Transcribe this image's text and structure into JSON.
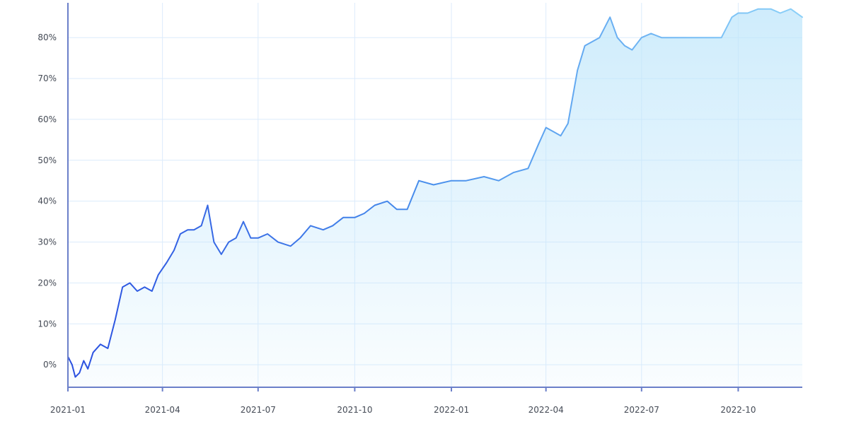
{
  "chart_data": {
    "type": "area",
    "title": "",
    "xlabel": "",
    "ylabel": "",
    "x_ticks": [
      "2021-01",
      "2021-04",
      "2021-07",
      "2021-10",
      "2022-01",
      "2022-04",
      "2022-07",
      "2022-10"
    ],
    "y_ticks": [
      "0%",
      "10%",
      "20%",
      "30%",
      "40%",
      "50%",
      "60%",
      "70%",
      "80%"
    ],
    "xlim": [
      "2021-01-01",
      "2022-12-01"
    ],
    "ylim": [
      -5.5,
      88.5
    ],
    "grid": true,
    "legend": "none",
    "colors": {
      "line_start": "#2a4fe0",
      "line_mid": "#4a90ec",
      "line_end": "#8bd0f8",
      "fill": "#bfe6fb",
      "axis": "#6b7fc9",
      "grid": "#dcebfb"
    },
    "series": [
      {
        "x": [
          "2021-01-01",
          "2021-01-05",
          "2021-01-08",
          "2021-01-12",
          "2021-01-16",
          "2021-01-20",
          "2021-01-25",
          "2021-02-01",
          "2021-02-08",
          "2021-02-15",
          "2021-02-22",
          "2021-03-01",
          "2021-03-08",
          "2021-03-15",
          "2021-03-22",
          "2021-03-28",
          "2021-04-05",
          "2021-04-12",
          "2021-04-18",
          "2021-04-25",
          "2021-05-01",
          "2021-05-08",
          "2021-05-14",
          "2021-05-20",
          "2021-05-27",
          "2021-06-03",
          "2021-06-10",
          "2021-06-17",
          "2021-06-24",
          "2021-07-01",
          "2021-07-10",
          "2021-07-20",
          "2021-08-01",
          "2021-08-10",
          "2021-08-20",
          "2021-09-01",
          "2021-09-10",
          "2021-09-20",
          "2021-10-01",
          "2021-10-10",
          "2021-10-20",
          "2021-11-01",
          "2021-11-10",
          "2021-11-20",
          "2021-12-01",
          "2021-12-15",
          "2022-01-01",
          "2022-01-15",
          "2022-02-01",
          "2022-02-15",
          "2022-03-01",
          "2022-03-15",
          "2022-03-25",
          "2022-04-01",
          "2022-04-08",
          "2022-04-15",
          "2022-04-22",
          "2022-05-01",
          "2022-05-08",
          "2022-05-15",
          "2022-05-22",
          "2022-06-01",
          "2022-06-08",
          "2022-06-15",
          "2022-06-22",
          "2022-07-01",
          "2022-07-10",
          "2022-07-20",
          "2022-08-01",
          "2022-08-15",
          "2022-09-01",
          "2022-09-15",
          "2022-09-25",
          "2022-10-01",
          "2022-10-10",
          "2022-10-20",
          "2022-11-01",
          "2022-11-10",
          "2022-11-20",
          "2022-12-01"
        ],
        "values": [
          2,
          0,
          -3,
          -2,
          1,
          -1,
          3,
          5,
          4,
          11,
          19,
          20,
          18,
          19,
          18,
          22,
          25,
          28,
          32,
          33,
          33,
          34,
          39,
          30,
          27,
          30,
          31,
          35,
          31,
          31,
          32,
          30,
          29,
          31,
          34,
          33,
          34,
          36,
          36,
          37,
          39,
          40,
          38,
          38,
          45,
          44,
          45,
          45,
          46,
          45,
          47,
          48,
          54,
          58,
          57,
          56,
          59,
          72,
          78,
          79,
          80,
          85,
          80,
          78,
          77,
          80,
          81,
          80,
          80,
          80,
          80,
          80,
          85,
          86,
          86,
          87,
          87,
          86,
          87,
          85
        ]
      }
    ]
  }
}
